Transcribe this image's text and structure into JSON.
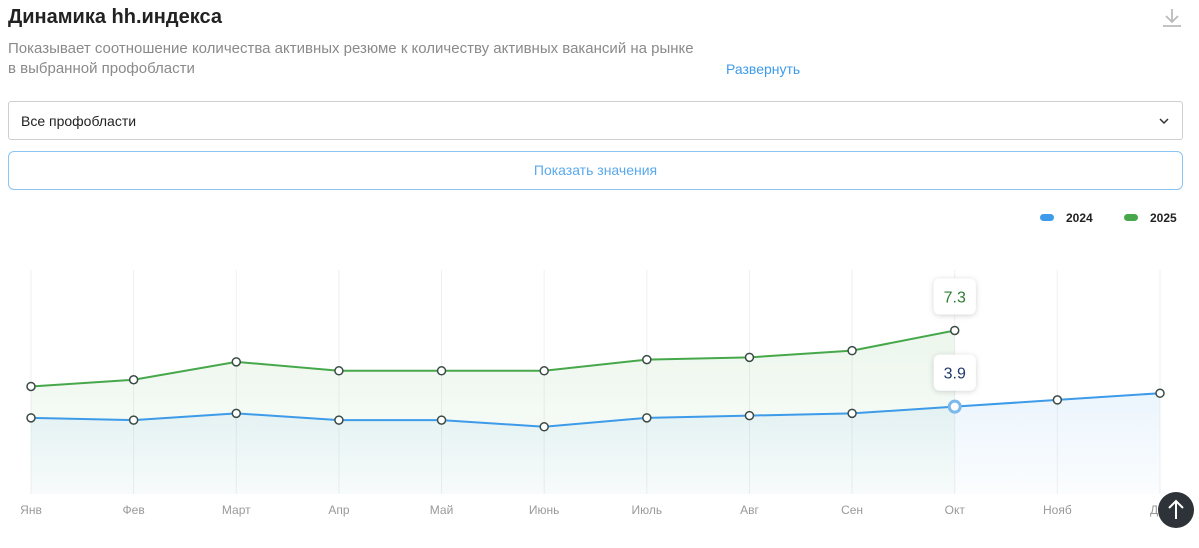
{
  "header": {
    "title": "Динамика hh.индекса",
    "description": [
      "Показывает соотношение количества активных резюме к количеству активных вакансий на рынке",
      "в выбранной профобласти"
    ],
    "expand": "Развернуть"
  },
  "filter": {
    "selected": "Все профобласти"
  },
  "button": "Показать значения",
  "chart_data": {
    "type": "line",
    "categories": [
      "Янв",
      "Фев",
      "Март",
      "Апр",
      "Май",
      "Июнь",
      "Июль",
      "Авг",
      "Сен",
      "Окт",
      "Нояб",
      "Дек"
    ],
    "series": [
      {
        "name": "2024",
        "color": "#3d9be9",
        "values": [
          3.4,
          3.3,
          3.6,
          3.3,
          3.3,
          3.0,
          3.4,
          3.5,
          3.6,
          3.9,
          4.2,
          4.5
        ]
      },
      {
        "name": "2025",
        "color": "#46a84a",
        "values": [
          4.8,
          5.1,
          5.9,
          5.5,
          5.5,
          5.5,
          6.0,
          6.1,
          6.4,
          7.3,
          null,
          null
        ]
      }
    ],
    "ylim": [
      0,
      10
    ],
    "grid": true,
    "legend": "top-right"
  }
}
